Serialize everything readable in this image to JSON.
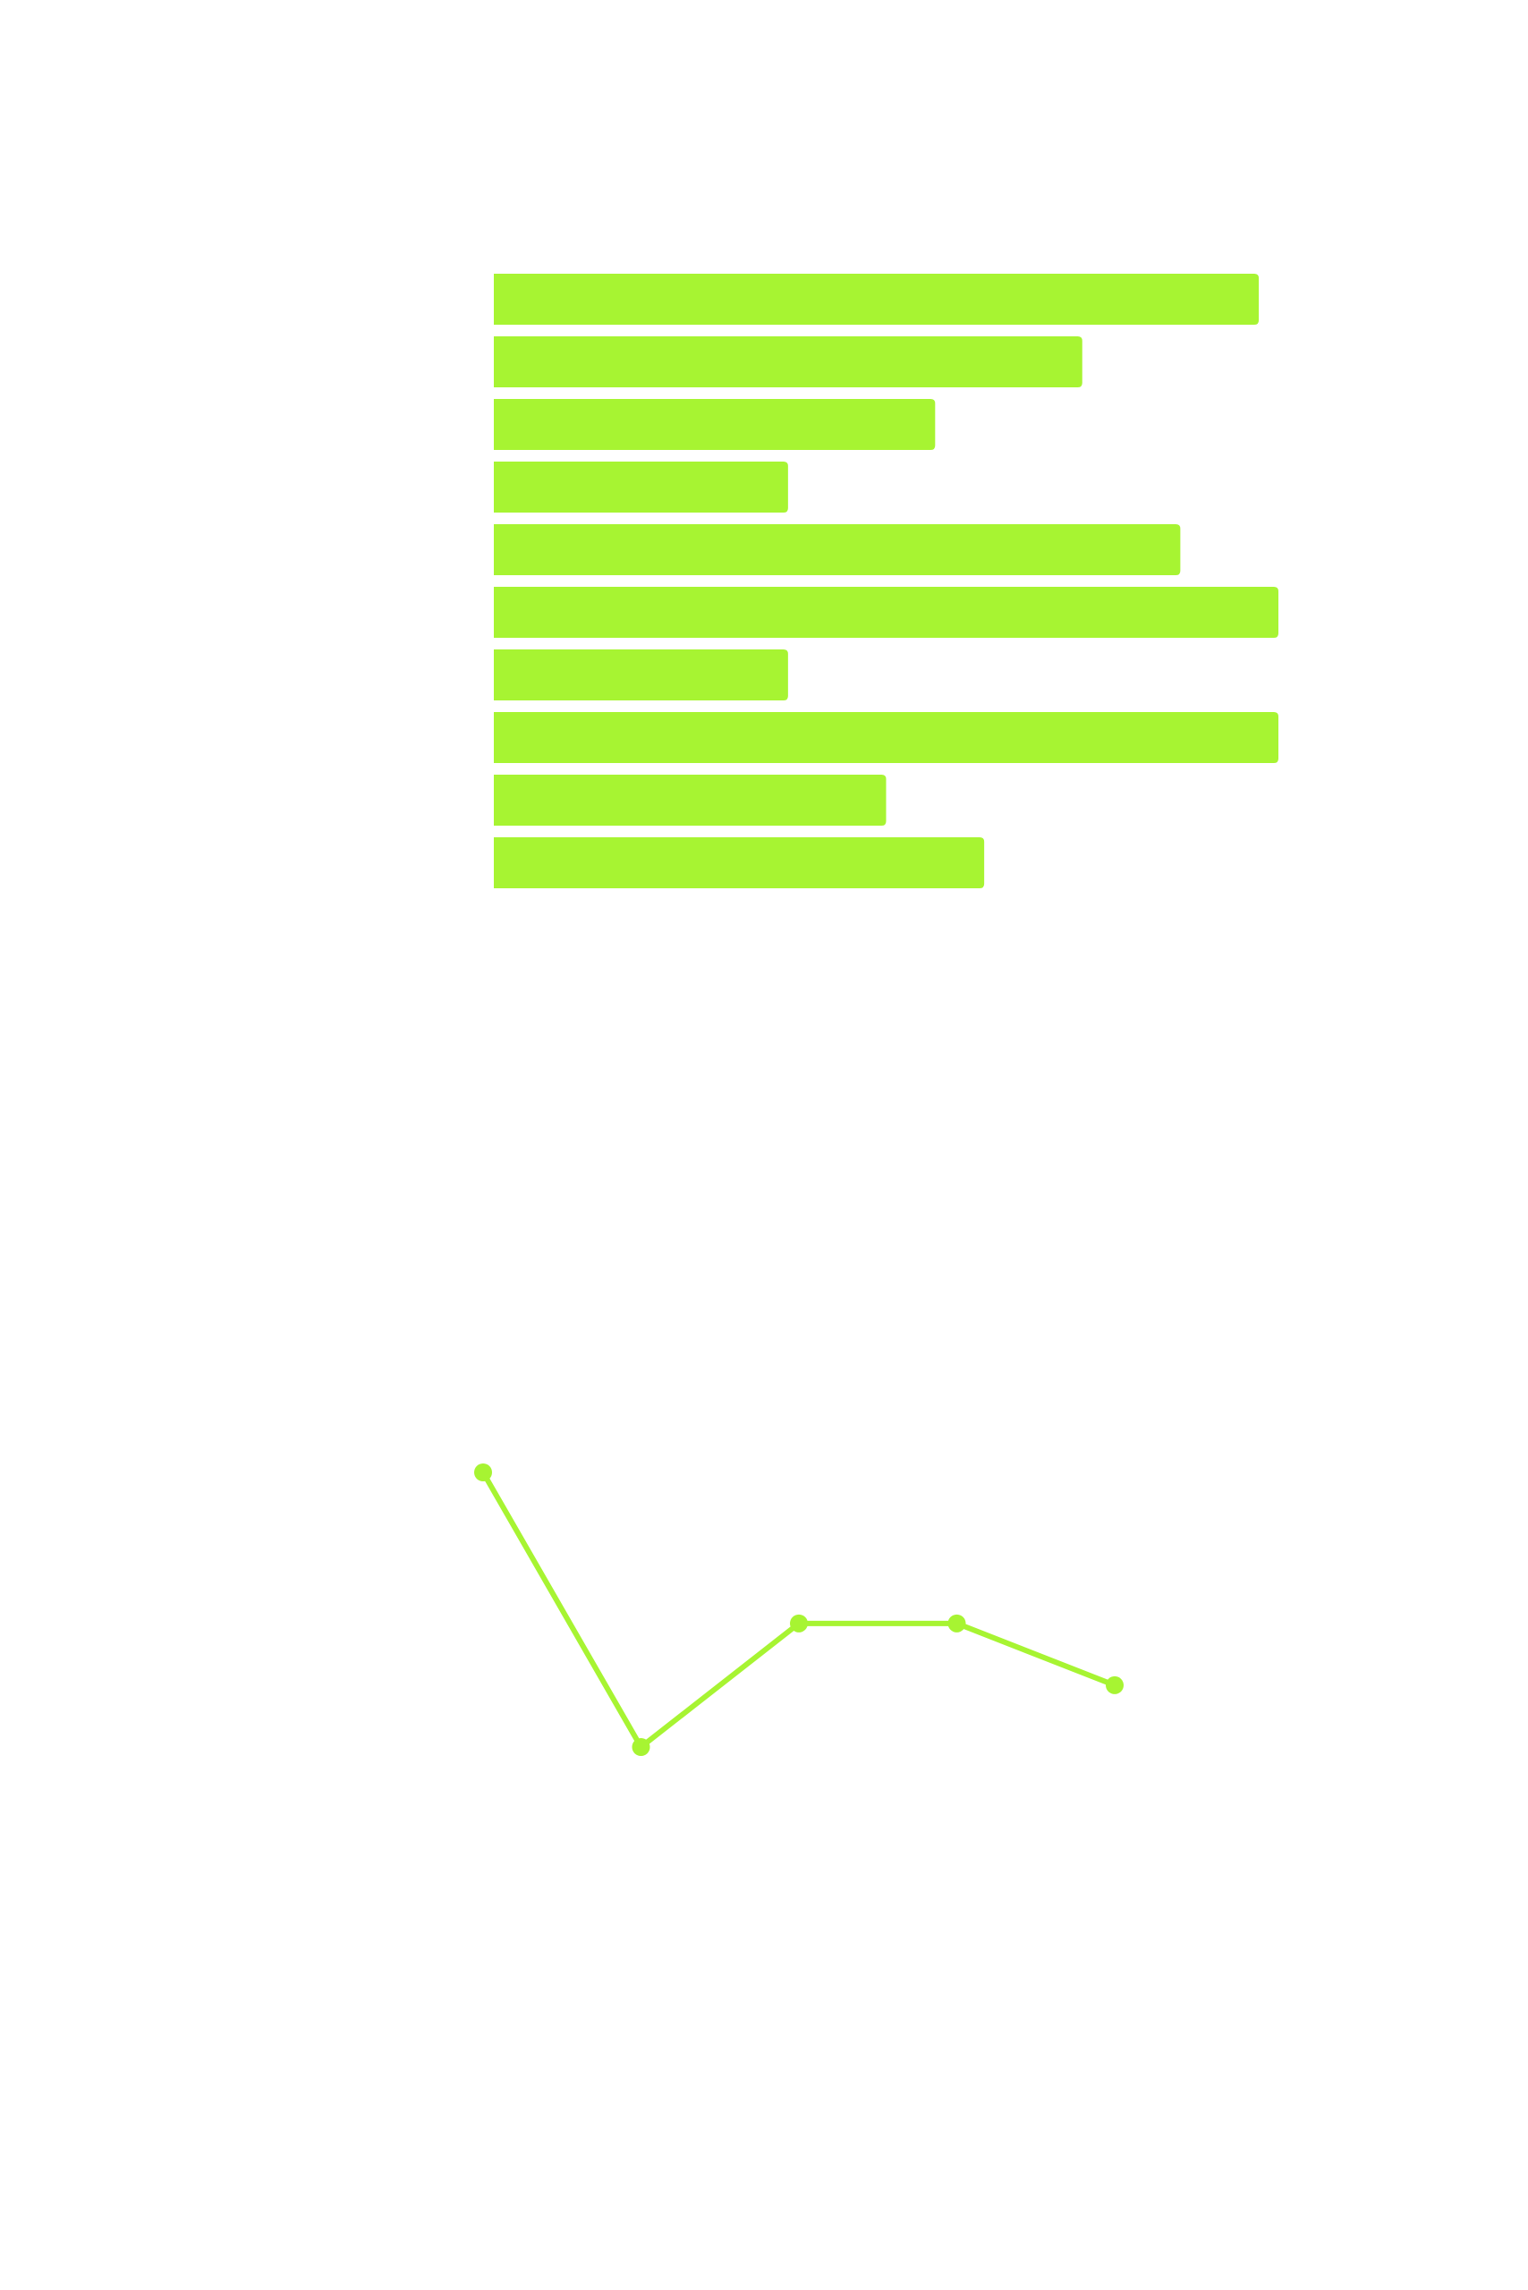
{
  "colors": {
    "accent": "#a7f432",
    "background": "#ffffff"
  },
  "chart_data": [
    {
      "type": "bar",
      "orientation": "horizontal",
      "title": "",
      "xlabel": "",
      "ylabel": "",
      "values": [
        78,
        60,
        45,
        30,
        70,
        80,
        30,
        80,
        40,
        50
      ],
      "xlim": [
        0,
        80
      ],
      "grid": false
    },
    {
      "type": "line",
      "title": "",
      "xlabel": "",
      "ylabel": "",
      "x": [
        0,
        1,
        2,
        3,
        4
      ],
      "values": [
        80,
        40,
        58,
        58,
        49
      ],
      "ylim": [
        0,
        100
      ],
      "markers": true,
      "grid": false
    }
  ]
}
